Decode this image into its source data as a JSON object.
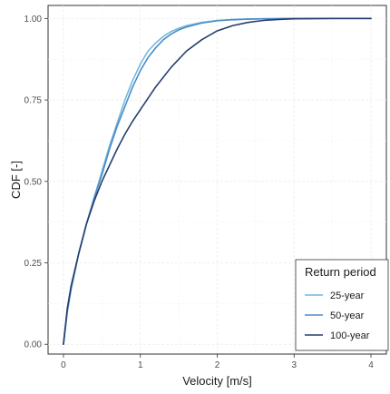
{
  "chart_data": {
    "type": "line",
    "xlabel": "Velocity [m/s]",
    "ylabel": "CDF [-]",
    "xlim": [
      -0.2,
      4.2
    ],
    "ylim": [
      -0.03,
      1.04
    ],
    "x_ticks": [
      0,
      1,
      2,
      3,
      4
    ],
    "x_tick_labels": [
      "0",
      "1",
      "2",
      "3",
      "4"
    ],
    "y_ticks": [
      0,
      0.25,
      0.5,
      0.75,
      1
    ],
    "y_tick_labels": [
      "0.00",
      "0.25",
      "0.50",
      "0.75",
      "1.00"
    ],
    "grid": true,
    "legend": {
      "title": "Return period",
      "position": "bottom-right"
    },
    "series": [
      {
        "name": "25-year",
        "color": "#74b9dc",
        "x": [
          0,
          0.05,
          0.1,
          0.2,
          0.3,
          0.4,
          0.5,
          0.6,
          0.7,
          0.8,
          0.9,
          1.0,
          1.1,
          1.2,
          1.3,
          1.4,
          1.5,
          1.6,
          1.8,
          2.0,
          2.2,
          2.4,
          2.6,
          2.8,
          3.0,
          3.5,
          4.0
        ],
        "y": [
          0,
          0.1,
          0.17,
          0.28,
          0.37,
          0.45,
          0.53,
          0.61,
          0.68,
          0.75,
          0.81,
          0.86,
          0.9,
          0.925,
          0.945,
          0.96,
          0.97,
          0.978,
          0.988,
          0.994,
          0.997,
          0.998,
          0.999,
          0.9995,
          1.0,
          1.0,
          1.0
        ]
      },
      {
        "name": "50-year",
        "color": "#4b8bc8",
        "x": [
          0,
          0.05,
          0.1,
          0.2,
          0.3,
          0.4,
          0.5,
          0.6,
          0.7,
          0.8,
          0.9,
          1.0,
          1.1,
          1.2,
          1.3,
          1.4,
          1.5,
          1.6,
          1.8,
          2.0,
          2.2,
          2.4,
          2.6,
          2.8,
          3.0,
          3.5,
          4.0
        ],
        "y": [
          0,
          0.1,
          0.17,
          0.28,
          0.37,
          0.45,
          0.52,
          0.6,
          0.67,
          0.73,
          0.79,
          0.84,
          0.88,
          0.91,
          0.935,
          0.952,
          0.965,
          0.974,
          0.986,
          0.993,
          0.996,
          0.998,
          0.999,
          0.9995,
          1.0,
          1.0,
          1.0
        ]
      },
      {
        "name": "100-year",
        "color": "#253e6e",
        "x": [
          0,
          0.05,
          0.1,
          0.2,
          0.3,
          0.4,
          0.5,
          0.6,
          0.7,
          0.8,
          0.9,
          1.0,
          1.2,
          1.4,
          1.6,
          1.8,
          2.0,
          2.2,
          2.4,
          2.6,
          2.8,
          3.0,
          3.2,
          3.5,
          4.0
        ],
        "y": [
          0,
          0.11,
          0.18,
          0.28,
          0.37,
          0.44,
          0.5,
          0.55,
          0.6,
          0.645,
          0.685,
          0.72,
          0.79,
          0.85,
          0.9,
          0.935,
          0.962,
          0.978,
          0.988,
          0.994,
          0.997,
          0.999,
          0.9995,
          1.0,
          1.0
        ]
      }
    ]
  }
}
